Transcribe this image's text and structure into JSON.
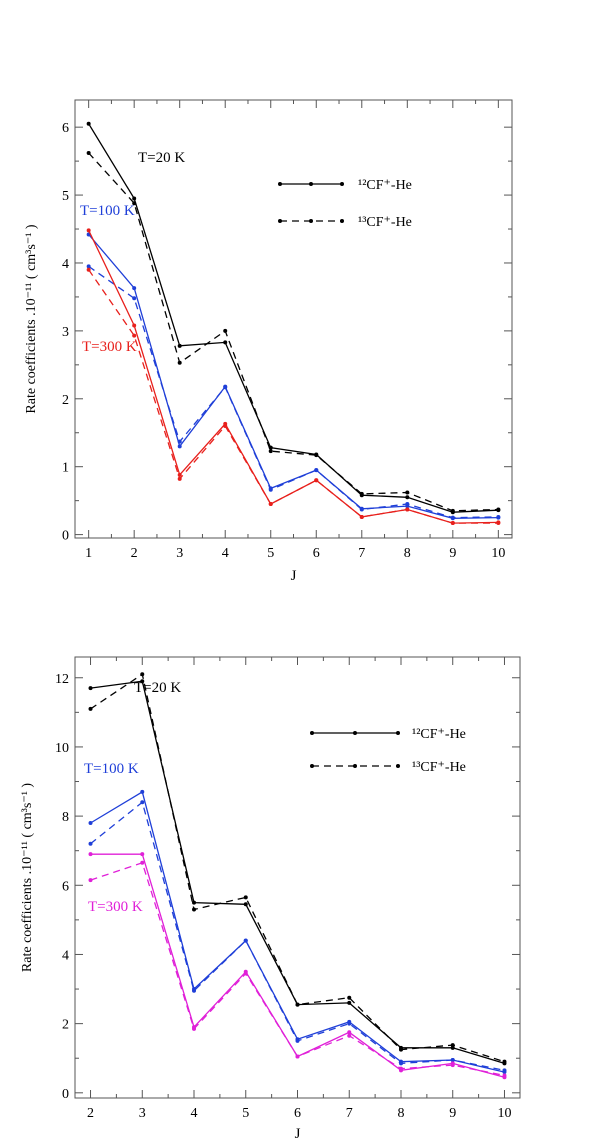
{
  "chart_data": [
    {
      "type": "line",
      "xlabel": "J",
      "ylabel": "Rate coefficients .10⁻¹¹ ( cm³s⁻¹ )",
      "xlim": [
        0.7,
        10.3
      ],
      "ylim": [
        -0.05,
        6.4
      ],
      "x_ticks": [
        1,
        2,
        3,
        4,
        5,
        6,
        7,
        8,
        9,
        10
      ],
      "y_ticks": [
        0,
        1,
        2,
        3,
        4,
        5,
        6
      ],
      "legend": [
        {
          "label": "¹²CF⁺-He",
          "style": "solid"
        },
        {
          "label": "¹³CF⁺-He",
          "style": "dashed"
        }
      ],
      "annotations": [
        {
          "text": "T=20 K",
          "color": "#000000"
        },
        {
          "text": "T=100 K",
          "color": "#1f3fd8"
        },
        {
          "text": "T=300 K",
          "color": "#e8201c"
        }
      ],
      "x": [
        1,
        2,
        3,
        4,
        5,
        6,
        7,
        8,
        9,
        10
      ],
      "series": [
        {
          "name": "12CF+-He T=20 K",
          "temperature": "T=20 K",
          "style": "solid",
          "color": "#000000",
          "values": [
            6.05,
            4.95,
            2.78,
            2.83,
            1.28,
            1.18,
            0.58,
            0.55,
            0.33,
            0.36
          ]
        },
        {
          "name": "13CF+-He T=20 K",
          "temperature": "T=20 K",
          "style": "dashed",
          "color": "#000000",
          "values": [
            5.62,
            4.88,
            2.53,
            3.0,
            1.23,
            1.17,
            0.6,
            0.62,
            0.35,
            0.37
          ]
        },
        {
          "name": "12CF+-He T=100 K",
          "temperature": "T=100 K",
          "style": "solid",
          "color": "#1f3fd8",
          "values": [
            4.42,
            3.63,
            1.3,
            2.18,
            0.68,
            0.95,
            0.38,
            0.42,
            0.24,
            0.25
          ]
        },
        {
          "name": "13CF+-He T=100 K",
          "temperature": "T=100 K",
          "style": "dashed",
          "color": "#1f3fd8",
          "values": [
            3.95,
            3.48,
            1.37,
            2.17,
            0.66,
            0.95,
            0.37,
            0.45,
            0.25,
            0.26
          ]
        },
        {
          "name": "12CF+-He T=300 K",
          "temperature": "T=300 K",
          "style": "solid",
          "color": "#e8201c",
          "values": [
            4.48,
            3.08,
            0.88,
            1.63,
            0.45,
            0.8,
            0.26,
            0.37,
            0.17,
            0.18
          ]
        },
        {
          "name": "13CF+-He T=300 K",
          "temperature": "T=300 K",
          "style": "dashed",
          "color": "#e8201c",
          "values": [
            3.9,
            2.93,
            0.82,
            1.6,
            0.45,
            0.8,
            0.26,
            0.37,
            0.17,
            0.17
          ]
        }
      ]
    },
    {
      "type": "line",
      "xlabel": "J",
      "ylabel": "Rate coefficients .10⁻¹¹ ( cm³s⁻¹ )",
      "xlim": [
        1.7,
        10.3
      ],
      "ylim": [
        -0.15,
        12.6
      ],
      "x_ticks": [
        2,
        3,
        4,
        5,
        6,
        7,
        8,
        9,
        10
      ],
      "y_ticks": [
        0,
        2,
        4,
        6,
        8,
        10,
        12
      ],
      "legend": [
        {
          "label": "¹²CF⁺-He",
          "style": "solid"
        },
        {
          "label": "¹³CF⁺-He",
          "style": "dashed"
        }
      ],
      "annotations": [
        {
          "text": "T=20 K",
          "color": "#000000"
        },
        {
          "text": "T=100 K",
          "color": "#1f3fd8"
        },
        {
          "text": "T=300 K",
          "color": "#e020d8"
        }
      ],
      "x": [
        2,
        3,
        4,
        5,
        6,
        7,
        8,
        9,
        10
      ],
      "series": [
        {
          "name": "12CF+-He T=20 K",
          "temperature": "T=20 K",
          "style": "solid",
          "color": "#000000",
          "values": [
            11.7,
            11.9,
            5.5,
            5.45,
            2.55,
            2.6,
            1.3,
            1.3,
            0.85
          ]
        },
        {
          "name": "13CF+-He T=20 K",
          "temperature": "T=20 K",
          "style": "dashed",
          "color": "#000000",
          "values": [
            11.1,
            12.1,
            5.3,
            5.65,
            2.55,
            2.75,
            1.25,
            1.38,
            0.9
          ]
        },
        {
          "name": "12CF+-He T=100 K",
          "temperature": "T=100 K",
          "style": "solid",
          "color": "#1f3fd8",
          "values": [
            7.8,
            8.7,
            3.0,
            4.4,
            1.55,
            2.05,
            0.9,
            0.95,
            0.6
          ]
        },
        {
          "name": "13CF+-He T=100 K",
          "temperature": "T=100 K",
          "style": "dashed",
          "color": "#1f3fd8",
          "values": [
            7.2,
            8.4,
            2.95,
            4.4,
            1.5,
            2.0,
            0.85,
            0.95,
            0.65
          ]
        },
        {
          "name": "12CF+-He T=300 K",
          "temperature": "T=300 K",
          "style": "solid",
          "color": "#e020d8",
          "values": [
            6.9,
            6.9,
            1.9,
            3.5,
            1.05,
            1.75,
            0.65,
            0.85,
            0.45
          ]
        },
        {
          "name": "13CF+-He T=300 K",
          "temperature": "T=300 K",
          "style": "dashed",
          "color": "#e020d8",
          "values": [
            6.15,
            6.65,
            1.85,
            3.45,
            1.05,
            1.65,
            0.7,
            0.8,
            0.5
          ]
        }
      ]
    }
  ]
}
